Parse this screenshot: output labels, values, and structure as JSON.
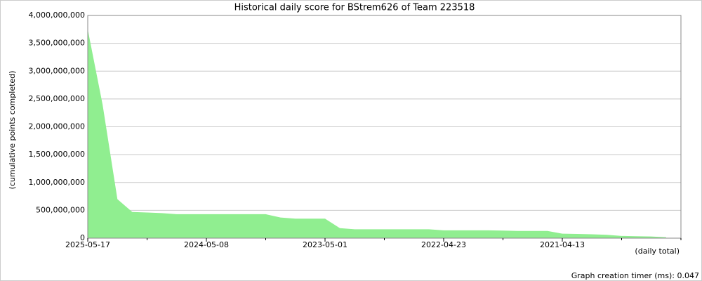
{
  "chart_data": {
    "type": "area",
    "title": "Historical daily score for BStrem626 of Team 223518",
    "y_label": "(cumulative points completed)",
    "x_label": "(daily total)",
    "categories": [
      "2025-05-17",
      null,
      null,
      null,
      null,
      null,
      null,
      null,
      "2024-05-08",
      null,
      null,
      null,
      null,
      null,
      null,
      null,
      "2023-05-01",
      null,
      null,
      null,
      null,
      null,
      null,
      null,
      "2022-04-23",
      null,
      null,
      null,
      null,
      null,
      null,
      null,
      "2021-04-13",
      null,
      null,
      null,
      null,
      null,
      null,
      null,
      null
    ],
    "values": [
      3750000000,
      2400000000,
      700000000,
      470000000,
      460000000,
      450000000,
      430000000,
      430000000,
      430000000,
      430000000,
      430000000,
      430000000,
      430000000,
      370000000,
      350000000,
      350000000,
      350000000,
      180000000,
      160000000,
      160000000,
      160000000,
      160000000,
      160000000,
      160000000,
      140000000,
      140000000,
      140000000,
      140000000,
      135000000,
      130000000,
      130000000,
      130000000,
      80000000,
      75000000,
      70000000,
      60000000,
      40000000,
      35000000,
      30000000,
      15000000,
      null
    ],
    "color": "#90ee90",
    "ylim": [
      0,
      4000000000
    ],
    "yticks": [
      0,
      {
        "value": 500000000,
        "label": "500,000,000"
      },
      {
        "value": 1000000000,
        "label": "1,000,000,000"
      },
      {
        "value": 1500000000,
        "label": "1,500,000,000"
      },
      {
        "value": 2000000000,
        "label": "2,000,000,000"
      },
      {
        "value": 2500000000,
        "label": "2,500,000,000"
      },
      {
        "value": 3000000000,
        "label": "3,000,000,000"
      },
      {
        "value": 3500000000,
        "label": "3,500,000,000"
      },
      {
        "value": 4000000000,
        "label": "4,000,000,000"
      }
    ],
    "grid": true
  },
  "footer": "Graph creation timer (ms): 0.047"
}
